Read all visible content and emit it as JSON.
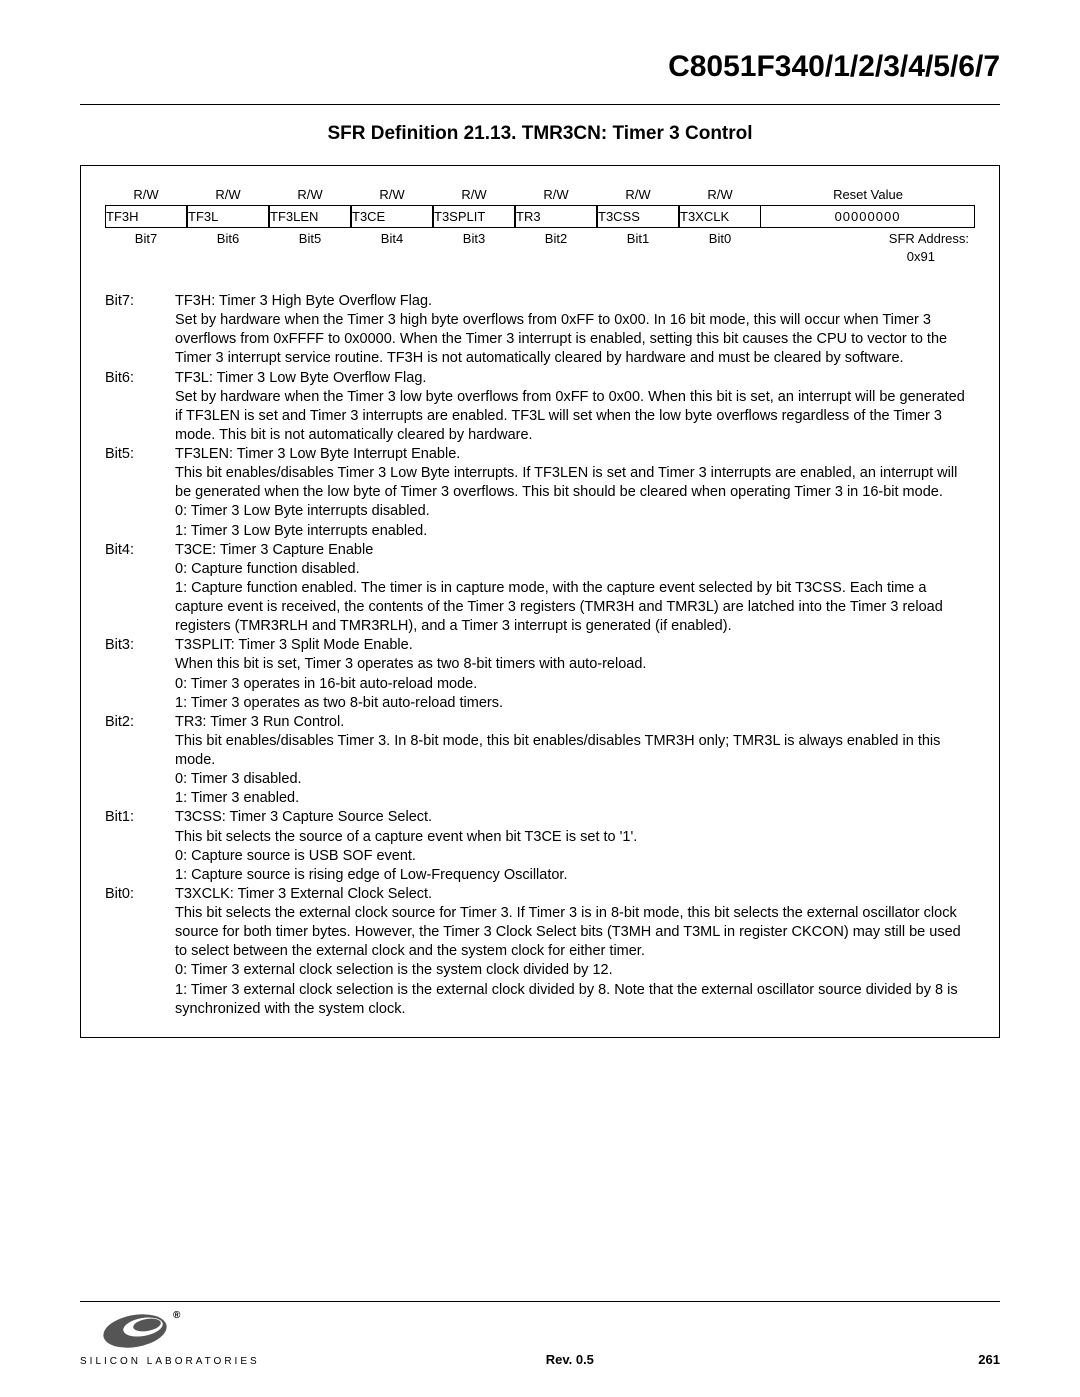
{
  "header": {
    "part_number": "C8051F340/1/2/3/4/5/6/7"
  },
  "section_title": "SFR Definition 21.13. TMR3CN: Timer 3 Control",
  "register": {
    "rw_row": [
      "R/W",
      "R/W",
      "R/W",
      "R/W",
      "R/W",
      "R/W",
      "R/W",
      "R/W"
    ],
    "reset_label": "Reset Value",
    "names": [
      "TF3H",
      "TF3L",
      "TF3LEN",
      "T3CE",
      "T3SPLIT",
      "TR3",
      "T3CSS",
      "T3XCLK"
    ],
    "reset_value": "00000000",
    "bit_row": [
      "Bit7",
      "Bit6",
      "Bit5",
      "Bit4",
      "Bit3",
      "Bit2",
      "Bit1",
      "Bit0"
    ],
    "sfr_label": "SFR Address:",
    "sfr_addr": "0x91"
  },
  "bits": [
    {
      "label": "Bit7:",
      "text": "TF3H: Timer 3 High Byte Overflow Flag.\nSet by hardware when the Timer 3 high byte overflows from 0xFF to 0x00. In 16 bit mode, this will occur when Timer 3 overflows from 0xFFFF to 0x0000. When the Timer 3 interrupt is enabled, setting this bit causes the CPU to vector to the Timer 3 interrupt service routine. TF3H is not automatically cleared by hardware and must be cleared by software."
    },
    {
      "label": "Bit6:",
      "text": "TF3L: Timer 3 Low Byte Overflow Flag.\nSet by hardware when the Timer 3 low byte overflows from 0xFF to 0x00. When this bit is set, an interrupt will be generated if TF3LEN is set and Timer 3 interrupts are enabled. TF3L will set when the low byte overflows regardless of the Timer 3 mode. This bit is not automatically cleared by hardware."
    },
    {
      "label": "Bit5:",
      "text": "TF3LEN: Timer 3 Low Byte Interrupt Enable.\nThis bit enables/disables Timer 3 Low Byte interrupts. If TF3LEN is set and Timer 3 interrupts are enabled, an interrupt will be generated when the low byte of Timer 3 overflows. This bit should be cleared when operating Timer 3 in 16-bit mode.\n0: Timer 3 Low Byte interrupts disabled.\n1: Timer 3 Low Byte interrupts enabled."
    },
    {
      "label": "Bit4:",
      "text": "T3CE: Timer 3 Capture Enable\n0: Capture function disabled.\n1: Capture function enabled. The timer is in capture mode, with the capture event selected by bit T3CSS. Each time a capture event is received, the contents of the Timer 3 registers (TMR3H and TMR3L) are latched into the Timer 3 reload registers (TMR3RLH and TMR3RLH), and a Timer 3 interrupt is generated (if enabled)."
    },
    {
      "label": "Bit3:",
      "text": "T3SPLIT: Timer 3 Split Mode Enable.\nWhen this bit is set, Timer 3 operates as two 8-bit timers with auto-reload.\n0: Timer 3 operates in 16-bit auto-reload mode.\n1: Timer 3 operates as two 8-bit auto-reload timers."
    },
    {
      "label": "Bit2:",
      "text": "TR3: Timer 3 Run Control.\nThis bit enables/disables Timer 3. In 8-bit mode, this bit enables/disables TMR3H only; TMR3L is always enabled in this mode.\n0: Timer 3 disabled.\n1: Timer 3 enabled."
    },
    {
      "label": "Bit1:",
      "text": "T3CSS: Timer 3 Capture Source Select.\nThis bit selects the source of a capture event when bit T3CE is set to '1'.\n0: Capture source is USB SOF event.\n1: Capture source is rising edge of Low-Frequency Oscillator."
    },
    {
      "label": "Bit0:",
      "text": "T3XCLK: Timer 3 External Clock Select.\nThis bit selects the external clock source for Timer 3. If Timer 3 is in 8-bit mode, this bit selects the external oscillator clock source for both timer bytes. However, the Timer 3 Clock Select bits (T3MH and T3ML in register CKCON) may still be used to select between the external clock and the system clock for either timer.\n0: Timer 3 external clock selection is the system clock divided by 12.\n1: Timer 3 external clock selection is the external clock divided by 8. Note that the external oscillator source divided by 8 is synchronized with the system clock."
    }
  ],
  "footer": {
    "company": "SILICON LABORATORIES",
    "rev": "Rev. 0.5",
    "page": "261"
  }
}
